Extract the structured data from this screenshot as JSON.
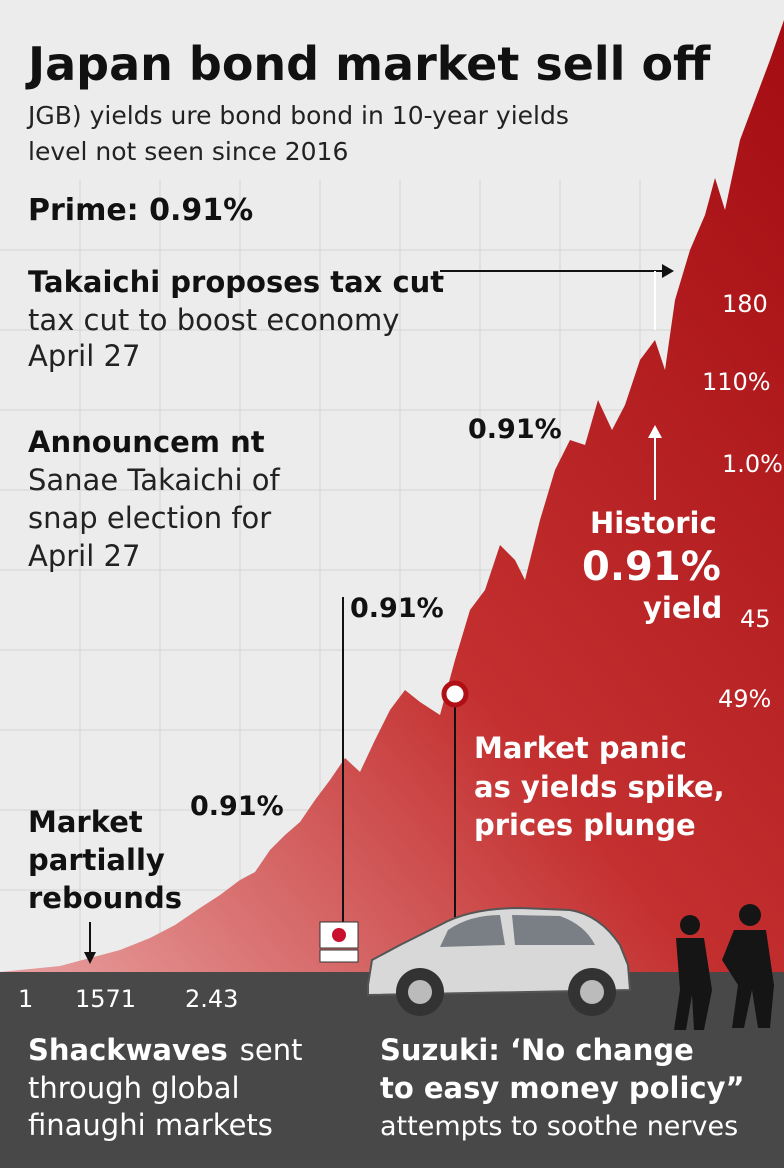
{
  "header": {
    "title": "Japan bond market sell off",
    "subtitle": [
      "JGB) yields ure bond bond in 10-year yields",
      "level not seen since 2016"
    ],
    "prime": "Prime: 0.91%"
  },
  "takaichi": {
    "title": "Takaichi proposes tax cut",
    "lines": [
      "tax cut to boost economy",
      "April 27"
    ]
  },
  "announcement": {
    "title": "Announcem nt",
    "lines": [
      "Sanae Takaichi of",
      "snap election for",
      "April 27"
    ]
  },
  "chart_labels": [
    "0.91%",
    "0.91%",
    "0.91%"
  ],
  "historic": [
    "Historic",
    "0.91%",
    "yield"
  ],
  "right_labels": [
    "180",
    "110%",
    "1.0%",
    "45",
    "49%"
  ],
  "market_panic": [
    "Market panic",
    "as yields spike,",
    "prices plunge"
  ],
  "market_rebounds": [
    "Market",
    "partially",
    "rebounds"
  ],
  "bottom_labels": [
    "1",
    "1571",
    "2.43"
  ],
  "footer_left": {
    "bold": "Shackwaves",
    "rest": "sent",
    "lines": [
      "through global",
      "finaughi markets"
    ]
  },
  "footer_right": {
    "bold": [
      "Suzuki: ‘No change",
      "to easy money policy”"
    ],
    "line": "attempts to soothe nerves"
  }
}
